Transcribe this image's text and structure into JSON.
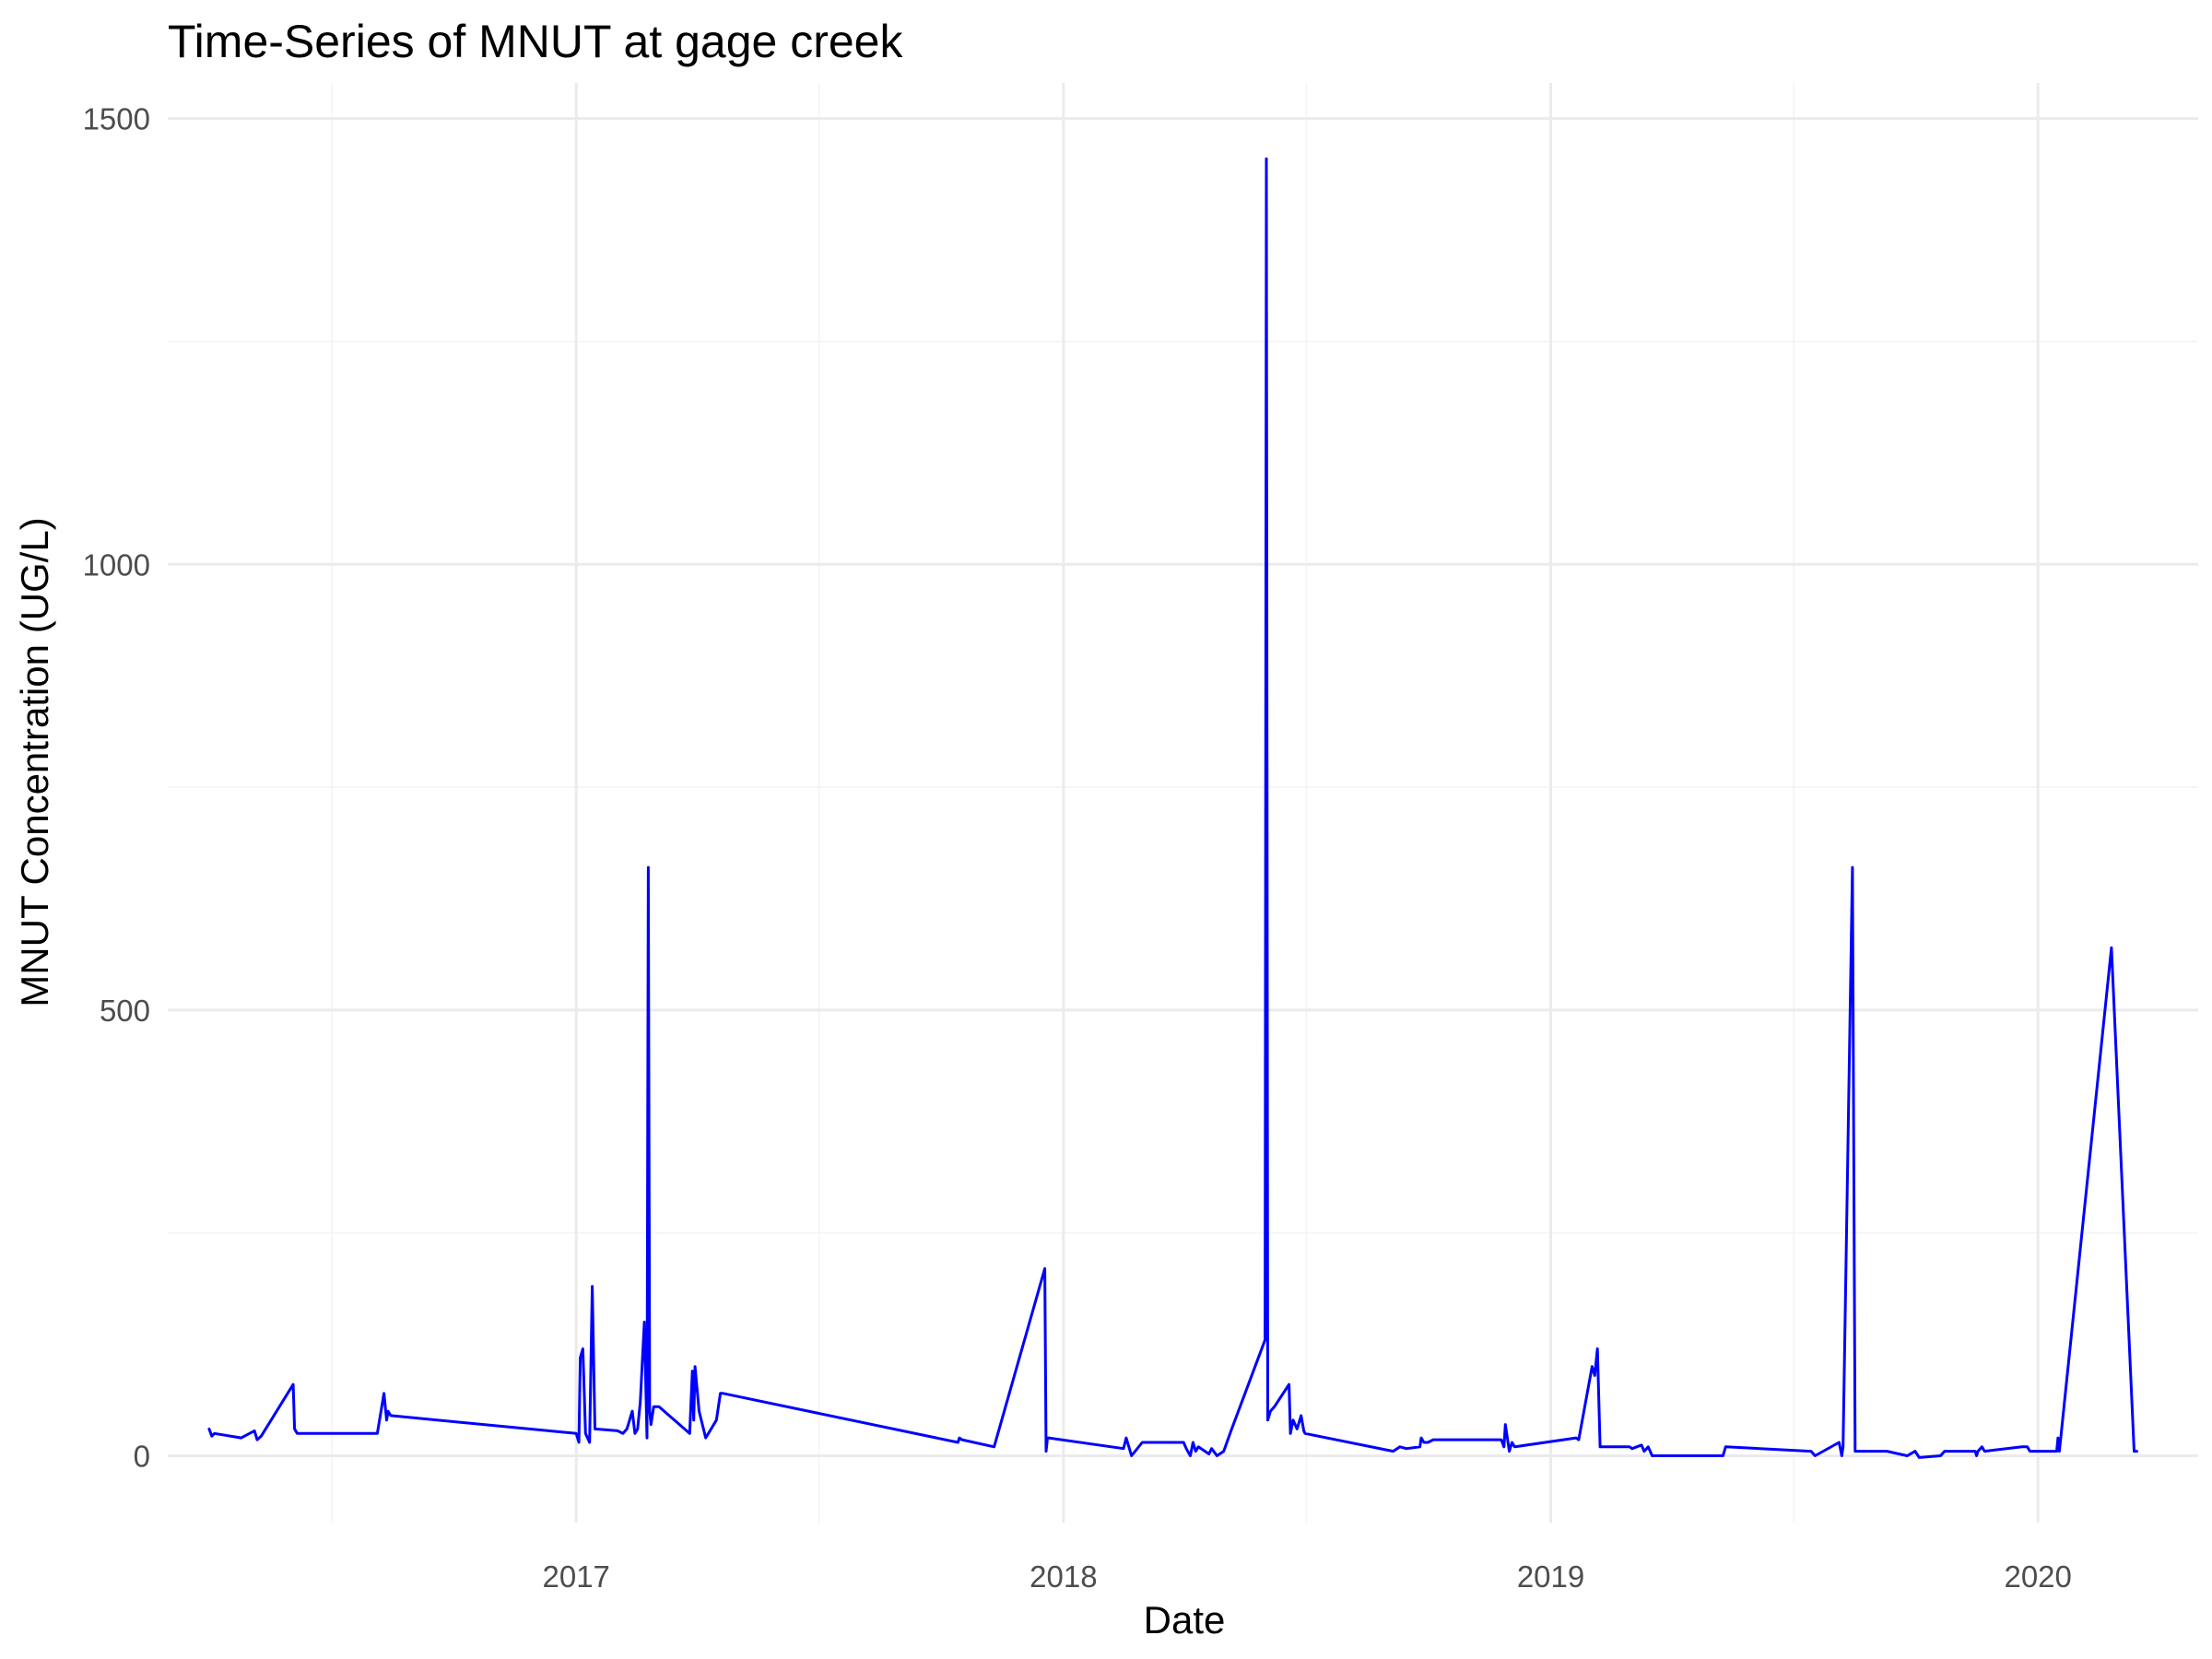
{
  "chart_data": {
    "type": "line",
    "title": "Time-Series of MNUT at gage creek",
    "xlabel": "Date",
    "ylabel": "MNUT Concentration (UG/L)",
    "x_ticks": [
      "2017",
      "2018",
      "2019",
      "2020"
    ],
    "y_ticks": [
      "0",
      "500",
      "1000",
      "1500"
    ],
    "xlim": [
      "2016-03-01",
      "2020-04-30"
    ],
    "ylim": [
      -75,
      1540
    ],
    "grid": true,
    "line_color": "#0000ff",
    "series": [
      {
        "x": [
          "2016-04-01",
          "2016-04-03",
          "2016-04-05",
          "2016-04-25",
          "2016-05-05",
          "2016-05-07",
          "2016-05-10",
          "2016-06-03",
          "2016-06-04",
          "2016-06-06",
          "2016-08-05",
          "2016-08-10",
          "2016-08-12",
          "2016-08-13",
          "2016-08-15",
          "2017-01-01",
          "2017-01-03",
          "2017-01-04",
          "2017-01-06",
          "2017-01-08",
          "2017-01-11",
          "2017-01-13",
          "2017-01-15",
          "2017-02-01",
          "2017-02-05",
          "2017-02-08",
          "2017-02-12",
          "2017-02-14",
          "2017-02-16",
          "2017-02-18",
          "2017-02-21",
          "2017-02-23",
          "2017-02-24",
          "2017-02-25",
          "2017-02-26",
          "2017-02-28",
          "2017-03-04",
          "2017-03-27",
          "2017-03-29",
          "2017-03-30",
          "2017-03-31",
          "2017-04-03",
          "2017-04-08",
          "2017-04-16",
          "2017-04-19",
          "2017-04-21",
          "2017-10-14",
          "2017-10-15",
          "2017-10-17",
          "2017-11-10",
          "2017-12-18",
          "2017-12-19",
          "2017-12-20",
          "2017-12-21",
          "2018-02-15",
          "2018-02-17",
          "2018-02-21",
          "2018-03-01",
          "2018-04-01",
          "2018-04-03",
          "2018-04-06",
          "2018-04-08",
          "2018-04-10",
          "2018-04-12",
          "2018-04-20",
          "2018-04-22",
          "2018-04-26",
          "2018-05-01",
          "2018-05-07",
          "2018-06-01",
          "2018-06-02",
          "2018-06-03",
          "2018-06-05",
          "2018-06-08",
          "2018-06-19",
          "2018-06-20",
          "2018-06-22",
          "2018-06-25",
          "2018-06-28",
          "2018-06-30",
          "2018-07-01",
          "2018-09-05",
          "2018-09-10",
          "2018-09-15",
          "2018-09-25",
          "2018-09-26",
          "2018-09-28",
          "2018-10-01",
          "2018-10-05",
          "2018-11-25",
          "2018-11-27",
          "2018-11-28",
          "2018-12-01",
          "2018-12-03",
          "2018-12-05",
          "2019-01-20",
          "2019-01-22",
          "2019-02-01",
          "2019-02-03",
          "2019-02-05",
          "2019-02-07",
          "2019-03-01",
          "2019-03-03",
          "2019-03-10",
          "2019-03-12",
          "2019-03-15",
          "2019-03-18",
          "2019-05-10",
          "2019-05-12",
          "2019-07-15",
          "2019-07-18",
          "2019-08-05",
          "2019-08-07",
          "2019-08-08",
          "2019-08-15",
          "2019-08-17",
          "2019-08-19",
          "2019-09-10",
          "2019-09-25",
          "2019-10-01",
          "2019-10-04",
          "2019-10-20",
          "2019-10-23",
          "2019-11-15",
          "2019-11-16",
          "2019-11-17",
          "2019-11-20",
          "2019-11-22",
          "2019-12-20",
          "2019-12-24",
          "2019-12-26",
          "2020-01-05",
          "2020-01-10",
          "2020-01-15",
          "2020-01-16",
          "2020-01-17",
          "2020-02-25",
          "2020-03-13",
          "2020-03-15"
        ],
        "y": [
          30,
          22,
          25,
          20,
          28,
          18,
          22,
          80,
          30,
          25,
          25,
          70,
          40,
          50,
          45,
          25,
          15,
          110,
          120,
          25,
          15,
          190,
          30,
          28,
          25,
          30,
          50,
          25,
          30,
          60,
          150,
          20,
          660,
          50,
          35,
          55,
          55,
          25,
          95,
          40,
          100,
          50,
          20,
          40,
          70,
          70,
          15,
          20,
          18,
          10,
          210,
          5,
          20,
          20,
          8,
          20,
          0,
          15,
          15,
          8,
          0,
          15,
          5,
          10,
          2,
          8,
          0,
          5,
          30,
          130,
          1455,
          40,
          50,
          55,
          80,
          25,
          40,
          30,
          45,
          28,
          25,
          5,
          10,
          8,
          10,
          20,
          15,
          15,
          18,
          18,
          10,
          35,
          5,
          15,
          10,
          20,
          18,
          100,
          90,
          120,
          10,
          10,
          8,
          12,
          5,
          10,
          0,
          0,
          10,
          5,
          0,
          15,
          0,
          10,
          660,
          5,
          5,
          5,
          0,
          5,
          -2,
          0,
          5,
          5,
          0,
          5,
          10,
          5,
          10,
          10,
          5,
          5,
          5,
          5,
          20,
          5,
          570,
          5,
          5
        ]
      }
    ]
  }
}
